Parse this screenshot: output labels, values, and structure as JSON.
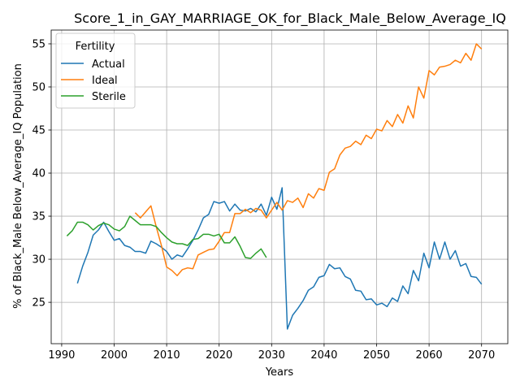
{
  "chart_data": {
    "type": "line",
    "title": "Score_1_in_GAY_MARRIAGE_OK_for_Black_Male_Below_Average_IQ",
    "xlabel": "Years",
    "ylabel": "% of Black_Male Below_Average_IQ Population",
    "xlim": [
      1988,
      2075
    ],
    "ylim": [
      20.2,
      56.6
    ],
    "xticks": [
      1990,
      2000,
      2010,
      2020,
      2030,
      2040,
      2050,
      2060,
      2070
    ],
    "yticks": [
      25,
      30,
      35,
      40,
      45,
      50,
      55
    ],
    "grid": true,
    "legend": {
      "title": "Fertility",
      "position": "top-left"
    },
    "series": [
      {
        "name": "Actual",
        "color": "#1f77b4",
        "x": [
          1993,
          1994,
          1995,
          1996,
          1997,
          1998,
          1999,
          2000,
          2001,
          2002,
          2003,
          2004,
          2005,
          2006,
          2007,
          2008,
          2009,
          2010,
          2011,
          2012,
          2013,
          2014,
          2015,
          2016,
          2017,
          2018,
          2019,
          2020,
          2021,
          2022,
          2023,
          2024,
          2025,
          2026,
          2027,
          2028,
          2029,
          2030,
          2031,
          2032,
          2033,
          2034,
          2035,
          2036,
          2037,
          2038,
          2039,
          2040,
          2041,
          2042,
          2043,
          2044,
          2045,
          2046,
          2047,
          2048,
          2049,
          2050,
          2051,
          2052,
          2053,
          2054,
          2055,
          2056,
          2057,
          2058,
          2059,
          2060,
          2061,
          2062,
          2063,
          2064,
          2065,
          2066,
          2067,
          2068,
          2069,
          2070
        ],
        "y": [
          27.2,
          29.2,
          30.8,
          32.8,
          33.4,
          34.3,
          33.2,
          32.2,
          32.4,
          31.6,
          31.4,
          30.9,
          30.9,
          30.7,
          32.1,
          31.8,
          31.4,
          30.9,
          30.0,
          30.5,
          30.3,
          31.2,
          32.2,
          33.4,
          34.8,
          35.2,
          36.7,
          36.5,
          36.7,
          35.6,
          36.4,
          35.7,
          35.6,
          35.9,
          35.5,
          36.4,
          35.1,
          37.2,
          35.8,
          38.3,
          21.9,
          23.5,
          24.3,
          25.2,
          26.4,
          26.8,
          27.9,
          28.1,
          29.4,
          28.9,
          29.0,
          28.0,
          27.7,
          26.4,
          26.3,
          25.3,
          25.4,
          24.7,
          24.9,
          24.5,
          25.5,
          25.1,
          26.9,
          26.0,
          28.7,
          27.5,
          30.7,
          29.0,
          32.0,
          30.0,
          32.0,
          30.0,
          31.0,
          29.2,
          29.5,
          28.0,
          27.9,
          27.1
        ]
      },
      {
        "name": "Ideal",
        "color": "#ff7f0e",
        "x": [
          2004,
          2005,
          2006,
          2007,
          2008,
          2009,
          2010,
          2011,
          2012,
          2013,
          2014,
          2015,
          2016,
          2017,
          2018,
          2019,
          2020,
          2021,
          2022,
          2023,
          2024,
          2025,
          2026,
          2027,
          2028,
          2029,
          2030,
          2031,
          2032,
          2033,
          2034,
          2035,
          2036,
          2037,
          2038,
          2039,
          2040,
          2041,
          2042,
          2043,
          2044,
          2045,
          2046,
          2047,
          2048,
          2049,
          2050,
          2051,
          2052,
          2053,
          2054,
          2055,
          2056,
          2057,
          2058,
          2059,
          2060,
          2061,
          2062,
          2063,
          2064,
          2065,
          2066,
          2067,
          2068,
          2069,
          2070
        ],
        "y": [
          35.4,
          34.8,
          35.5,
          36.2,
          33.8,
          31.6,
          29.1,
          28.7,
          28.1,
          28.8,
          29.0,
          28.9,
          30.5,
          30.8,
          31.1,
          31.2,
          32.1,
          33.1,
          33.1,
          35.3,
          35.3,
          35.8,
          35.4,
          35.9,
          35.7,
          34.8,
          35.7,
          36.6,
          35.7,
          36.8,
          36.6,
          37.1,
          36.0,
          37.6,
          37.1,
          38.2,
          38.0,
          40.1,
          40.5,
          42.1,
          42.9,
          43.1,
          43.7,
          43.3,
          44.4,
          44.0,
          45.1,
          44.9,
          46.1,
          45.4,
          46.8,
          45.8,
          47.8,
          46.4,
          50.0,
          48.7,
          51.9,
          51.4,
          52.3,
          52.4,
          52.6,
          53.1,
          52.8,
          53.9,
          53.1,
          55.0,
          54.4
        ]
      },
      {
        "name": "Sterile",
        "color": "#2ca02c",
        "x": [
          1991,
          1992,
          1993,
          1994,
          1995,
          1996,
          1997,
          1998,
          1999,
          2000,
          2001,
          2002,
          2003,
          2004,
          2005,
          2006,
          2007,
          2008,
          2009,
          2010,
          2011,
          2012,
          2013,
          2014,
          2015,
          2016,
          2017,
          2018,
          2019,
          2020,
          2021,
          2022,
          2023,
          2024,
          2025,
          2026,
          2027,
          2028,
          2029
        ],
        "y": [
          32.7,
          33.3,
          34.3,
          34.3,
          34.0,
          33.4,
          33.9,
          34.2,
          34.0,
          33.5,
          33.3,
          33.8,
          35.0,
          34.5,
          34.0,
          34.0,
          34.0,
          33.8,
          33.1,
          32.5,
          32.0,
          31.8,
          31.8,
          31.6,
          32.3,
          32.4,
          32.9,
          32.9,
          32.7,
          32.9,
          31.9,
          31.9,
          32.6,
          31.5,
          30.2,
          30.1,
          30.7,
          31.2,
          30.2
        ]
      }
    ]
  }
}
